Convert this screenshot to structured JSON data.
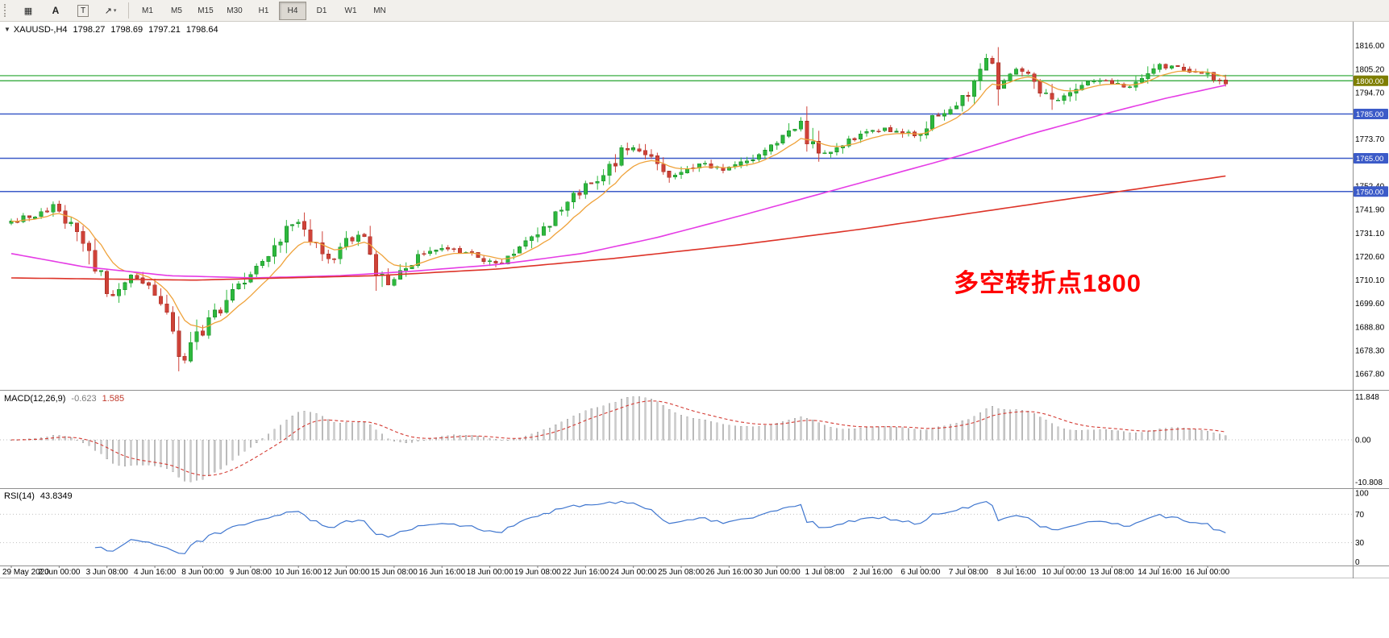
{
  "toolbar": {
    "tools": [
      {
        "id": "tick-chart",
        "glyph": "▦",
        "caret": ""
      },
      {
        "id": "annotation-a",
        "glyph": "A",
        "caret": "",
        "style": "bold"
      },
      {
        "id": "text-label",
        "glyph": "T",
        "caret": "",
        "style": "boxed"
      },
      {
        "id": "draw-tools",
        "glyph": "↗",
        "caret": "▾"
      }
    ],
    "timeframes": [
      "M1",
      "M5",
      "M15",
      "M30",
      "H1",
      "H4",
      "D1",
      "W1",
      "MN"
    ],
    "active_timeframe": "H4"
  },
  "chart": {
    "header": {
      "collapse_glyph": "▼",
      "title": "XAUUSD-,H4",
      "open": "1798.27",
      "high": "1798.69",
      "low": "1797.21",
      "close": "1798.64"
    },
    "annotation": {
      "text": "多空转折点1800",
      "color": "#ff0000"
    },
    "hlines": [
      {
        "price": 1802.3,
        "color": "#23a32c",
        "width": 1.2
      },
      {
        "price": 1800.0,
        "color": "#23a32c",
        "width": 1.2
      },
      {
        "price": 1785.0,
        "color": "#3c5bc8",
        "width": 1.6
      },
      {
        "price": 1765.0,
        "color": "#3c5bc8",
        "width": 1.6
      },
      {
        "price": 1750.0,
        "color": "#3c5bc8",
        "width": 1.6
      }
    ],
    "price_axis": {
      "ticks": [
        {
          "label": "1816.00",
          "price": 1816.0
        },
        {
          "label": "1805.20",
          "price": 1805.2
        },
        {
          "label": "1794.70",
          "price": 1794.7
        },
        {
          "label": "1773.70",
          "price": 1773.7
        },
        {
          "label": "1752.40",
          "price": 1752.4
        },
        {
          "label": "1741.90",
          "price": 1741.9
        },
        {
          "label": "1731.10",
          "price": 1731.1
        },
        {
          "label": "1720.60",
          "price": 1720.6
        },
        {
          "label": "1710.10",
          "price": 1710.1
        },
        {
          "label": "1699.60",
          "price": 1699.6
        },
        {
          "label": "1688.80",
          "price": 1688.8
        },
        {
          "label": "1678.30",
          "price": 1678.3
        },
        {
          "label": "1667.80",
          "price": 1667.8
        }
      ],
      "tags": [
        {
          "label": "1800.00",
          "price": 1800.0,
          "bg": "#7e7e00"
        },
        {
          "label": "1785.00",
          "price": 1785.0,
          "bg": "#3c5bc8"
        },
        {
          "label": "1765.00",
          "price": 1765.0,
          "bg": "#3c5bc8"
        },
        {
          "label": "1750.00",
          "price": 1750.0,
          "bg": "#3c5bc8"
        }
      ]
    },
    "time_axis": {
      "labels": [
        "29 May 2020",
        "2 Jun 00:00",
        "3 Jun 08:00",
        "4 Jun 16:00",
        "8 Jun 00:00",
        "9 Jun 08:00",
        "10 Jun 16:00",
        "12 Jun 00:00",
        "15 Jun 08:00",
        "16 Jun 16:00",
        "18 Jun 00:00",
        "19 Jun 08:00",
        "22 Jun 16:00",
        "24 Jun 00:00",
        "25 Jun 08:00",
        "26 Jun 16:00",
        "30 Jun 00:00",
        "1 Jul 08:00",
        "2 Jul 16:00",
        "6 Jul 00:00",
        "7 Jul 08:00",
        "8 Jul 16:00",
        "10 Jul 00:00",
        "13 Jul 08:00",
        "14 Jul 16:00",
        "16 Jul 00:00"
      ]
    }
  },
  "indicators": {
    "macd": {
      "label": "MACD(12,26,9)",
      "value_main": "-0.623",
      "value_signal": "1.585",
      "axis_top": "11.848",
      "axis_zero": "0.00",
      "axis_bottom": "-10.808",
      "fast": 12,
      "slow": 26,
      "signal": 9,
      "histogram_color": "#cccccc",
      "histogram_edge": "#a9a9a9",
      "signal_color": "#d43a32"
    },
    "rsi": {
      "label": "RSI(14)",
      "value": "43.8349",
      "axis_labels": [
        "100",
        "70",
        "30",
        "0"
      ],
      "period": 14,
      "levels": [
        70,
        30
      ],
      "line_color": "#3f76cf",
      "level_color": "#c0c0c0"
    }
  },
  "chart_data": {
    "type": "candlestick",
    "symbol": "XAUUSD-",
    "timeframe": "H4",
    "n_candles": 204,
    "visible_range": {
      "start": "29 May 2020",
      "end": "16 Jul 00:00"
    },
    "price_range": [
      1667.8,
      1816.0
    ],
    "last_ohlc": {
      "open": 1798.27,
      "high": 1798.69,
      "low": 1797.21,
      "close": 1798.64
    },
    "price_anchors": [
      [
        0.0,
        1736
      ],
      [
        0.035,
        1743
      ],
      [
        0.058,
        1728
      ],
      [
        0.081,
        1702
      ],
      [
        0.101,
        1712
      ],
      [
        0.118,
        1705
      ],
      [
        0.132,
        1692
      ],
      [
        0.14,
        1670
      ],
      [
        0.154,
        1684
      ],
      [
        0.172,
        1697
      ],
      [
        0.194,
        1713
      ],
      [
        0.214,
        1720
      ],
      [
        0.233,
        1738
      ],
      [
        0.248,
        1727
      ],
      [
        0.261,
        1716
      ],
      [
        0.278,
        1728
      ],
      [
        0.29,
        1730
      ],
      [
        0.308,
        1706
      ],
      [
        0.329,
        1719
      ],
      [
        0.354,
        1724
      ],
      [
        0.381,
        1722
      ],
      [
        0.401,
        1716
      ],
      [
        0.421,
        1724
      ],
      [
        0.447,
        1738
      ],
      [
        0.467,
        1749
      ],
      [
        0.486,
        1757
      ],
      [
        0.509,
        1772
      ],
      [
        0.527,
        1764
      ],
      [
        0.544,
        1757
      ],
      [
        0.565,
        1763
      ],
      [
        0.587,
        1760
      ],
      [
        0.604,
        1764
      ],
      [
        0.624,
        1769
      ],
      [
        0.65,
        1781
      ],
      [
        0.664,
        1764
      ],
      [
        0.682,
        1772
      ],
      [
        0.7,
        1776
      ],
      [
        0.722,
        1778
      ],
      [
        0.744,
        1775
      ],
      [
        0.761,
        1784
      ],
      [
        0.784,
        1792
      ],
      [
        0.806,
        1810
      ],
      [
        0.815,
        1797
      ],
      [
        0.827,
        1806
      ],
      [
        0.84,
        1803
      ],
      [
        0.859,
        1789
      ],
      [
        0.879,
        1799
      ],
      [
        0.9,
        1800
      ],
      [
        0.92,
        1797
      ],
      [
        0.94,
        1807
      ],
      [
        0.96,
        1806
      ],
      [
        0.98,
        1804
      ],
      [
        1.0,
        1798.6
      ]
    ],
    "moving_averages": {
      "fast": {
        "color": "#efa23a",
        "period": 9
      },
      "mid": {
        "color": "#e53ce5",
        "anchors": [
          [
            0,
            1722
          ],
          [
            0.06,
            1716
          ],
          [
            0.13,
            1712
          ],
          [
            0.2,
            1711
          ],
          [
            0.27,
            1712
          ],
          [
            0.33,
            1714
          ],
          [
            0.4,
            1717
          ],
          [
            0.47,
            1722
          ],
          [
            0.53,
            1729
          ],
          [
            0.6,
            1739
          ],
          [
            0.66,
            1748
          ],
          [
            0.72,
            1757
          ],
          [
            0.78,
            1766
          ],
          [
            0.84,
            1776
          ],
          [
            0.9,
            1785
          ],
          [
            0.95,
            1792
          ],
          [
            1,
            1798
          ]
        ]
      },
      "slow": {
        "color": "#dd3328",
        "anchors": [
          [
            0,
            1711
          ],
          [
            0.15,
            1710
          ],
          [
            0.3,
            1712
          ],
          [
            0.4,
            1715
          ],
          [
            0.5,
            1720
          ],
          [
            0.6,
            1726
          ],
          [
            0.7,
            1733
          ],
          [
            0.8,
            1741
          ],
          [
            0.9,
            1749
          ],
          [
            1,
            1757
          ]
        ]
      }
    },
    "candle_colors": {
      "bull": "#2db83d",
      "bull_edge": "#1d8f2c",
      "bear": "#cf4238",
      "bear_edge": "#a83228"
    }
  }
}
